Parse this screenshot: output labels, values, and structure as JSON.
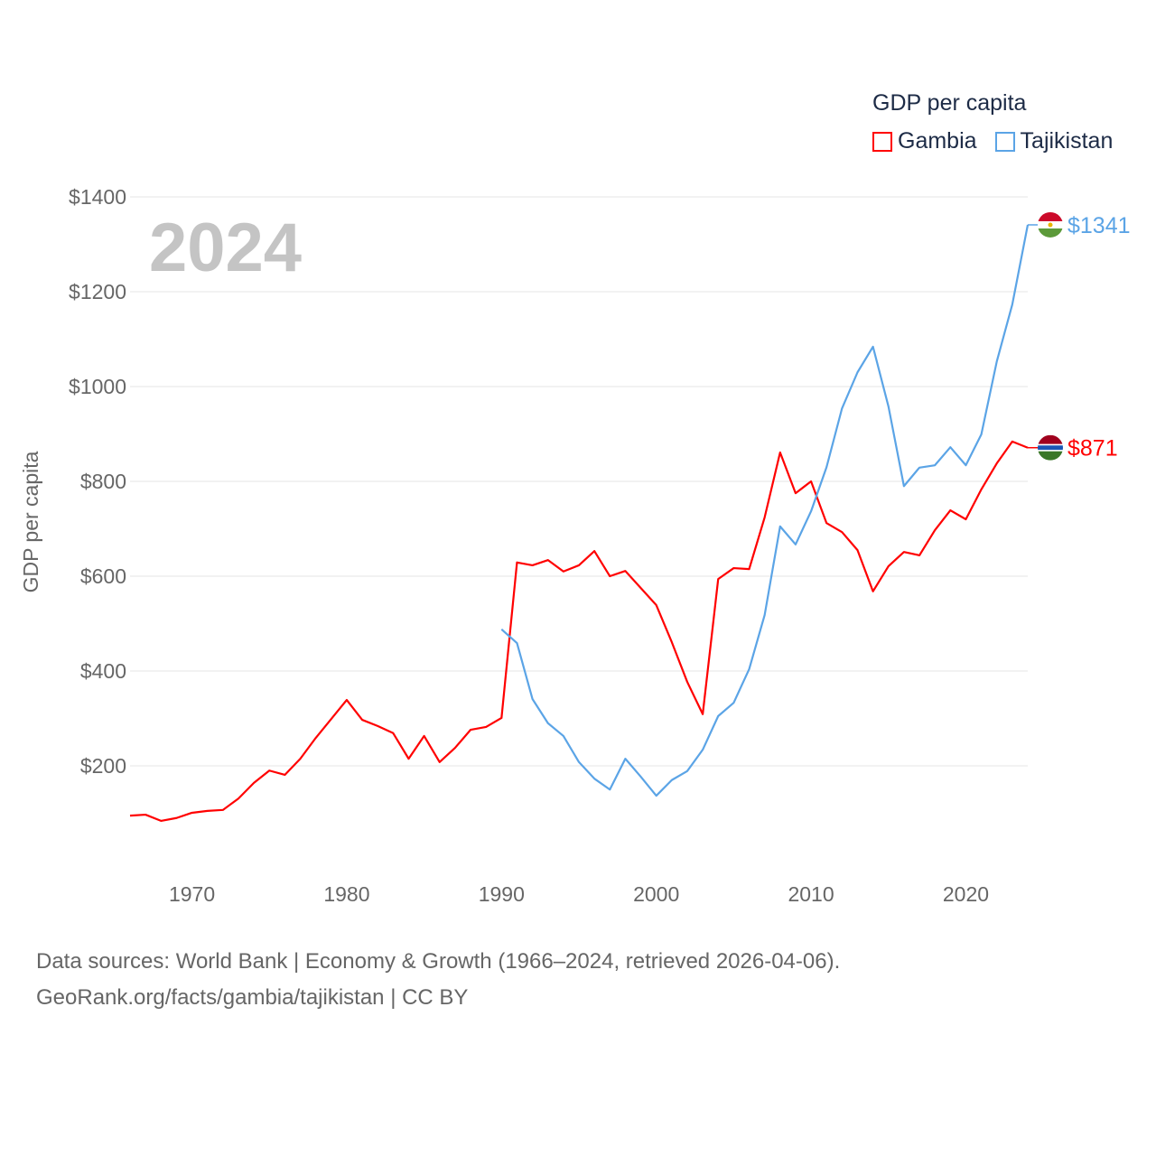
{
  "chart_data": {
    "type": "line",
    "title": "GDP per capita",
    "year_label": "2024",
    "ylabel": "GDP per capita",
    "xlabel": "",
    "ylim": [
      0,
      1400
    ],
    "xlim": [
      1966,
      2024
    ],
    "yticks": [
      200,
      400,
      600,
      800,
      1000,
      1200,
      1400
    ],
    "ytick_labels": [
      "$200",
      "$400",
      "$600",
      "$800",
      "$1000",
      "$1200",
      "$1400"
    ],
    "xticks": [
      1970,
      1980,
      1990,
      2000,
      2010,
      2020
    ],
    "xtick_labels": [
      "1970",
      "1980",
      "1990",
      "2000",
      "2010",
      "2020"
    ],
    "grid": true,
    "legend_placement": "top-right",
    "series": [
      {
        "name": "Gambia",
        "color": "#ff0000",
        "end_label": "$871",
        "start_year": 1966,
        "values": [
          95,
          97,
          84,
          90,
          101,
          105,
          107,
          131,
          164,
          190,
          181,
          215,
          259,
          299,
          339,
          297,
          284,
          269,
          215,
          263,
          208,
          238,
          276,
          282,
          301,
          629,
          623,
          634,
          610,
          623,
          653,
          600,
          611,
          575,
          539,
          461,
          377,
          309,
          594,
          617,
          615,
          724,
          861,
          775,
          800,
          712,
          693,
          655,
          568,
          621,
          651,
          644,
          697,
          739,
          720,
          783,
          838,
          884,
          871
        ]
      },
      {
        "name": "Tajikistan",
        "color": "#5ba4e6",
        "end_label": "$1341",
        "start_year": 1990,
        "values": [
          488,
          459,
          341,
          290,
          263,
          208,
          173,
          150,
          215,
          177,
          137,
          170,
          189,
          234,
          305,
          333,
          404,
          518,
          705,
          667,
          737,
          830,
          954,
          1030,
          1084,
          958,
          790,
          829,
          834,
          872,
          834,
          899,
          1053,
          1173,
          1341
        ]
      }
    ]
  },
  "footer": {
    "line1": "Data sources: World Bank | Economy & Growth (1966–2024, retrieved 2026-04-06).",
    "line2": "GeoRank.org/facts/gambia/tajikistan | CC BY"
  }
}
